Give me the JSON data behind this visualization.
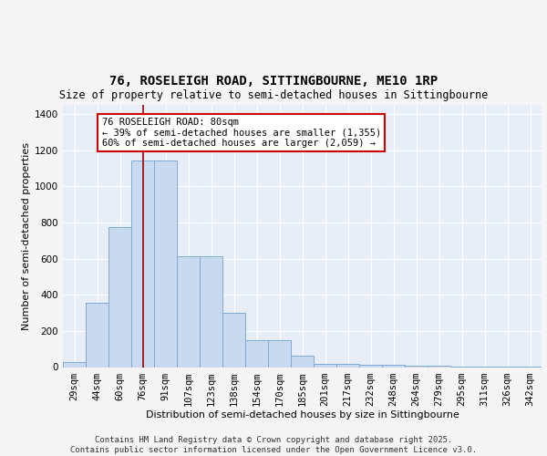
{
  "title_line1": "76, ROSELEIGH ROAD, SITTINGBOURNE, ME10 1RP",
  "title_line2": "Size of property relative to semi-detached houses in Sittingbourne",
  "xlabel": "Distribution of semi-detached houses by size in Sittingbourne",
  "ylabel": "Number of semi-detached properties",
  "categories": [
    "29sqm",
    "44sqm",
    "60sqm",
    "76sqm",
    "91sqm",
    "107sqm",
    "123sqm",
    "138sqm",
    "154sqm",
    "170sqm",
    "185sqm",
    "201sqm",
    "217sqm",
    "232sqm",
    "248sqm",
    "264sqm",
    "279sqm",
    "295sqm",
    "311sqm",
    "326sqm",
    "342sqm"
  ],
  "values": [
    28,
    355,
    775,
    1140,
    1140,
    615,
    615,
    300,
    148,
    148,
    62,
    18,
    18,
    12,
    12,
    8,
    8,
    5,
    3,
    3,
    3
  ],
  "bar_color": "#c9d9f0",
  "bar_edge_color": "#7daad4",
  "highlight_x": "76sqm",
  "highlight_line_color": "#990000",
  "annotation_text": "76 ROSELEIGH ROAD: 80sqm\n← 39% of semi-detached houses are smaller (1,355)\n60% of semi-detached houses are larger (2,059) →",
  "annotation_box_color": "#cc0000",
  "ylim": [
    0,
    1450
  ],
  "yticks": [
    0,
    200,
    400,
    600,
    800,
    1000,
    1200,
    1400
  ],
  "plot_bg_color": "#e8eef8",
  "grid_color": "#ffffff",
  "fig_bg_color": "#f5f5f5",
  "footer_text": "Contains HM Land Registry data © Crown copyright and database right 2025.\nContains public sector information licensed under the Open Government Licence v3.0.",
  "bar_width": 1.0,
  "ann_fontsize": 7.5,
  "title1_fontsize": 10,
  "title2_fontsize": 8.5,
  "ylabel_fontsize": 8,
  "xlabel_fontsize": 8,
  "tick_fontsize": 7.5,
  "footer_fontsize": 6.5
}
